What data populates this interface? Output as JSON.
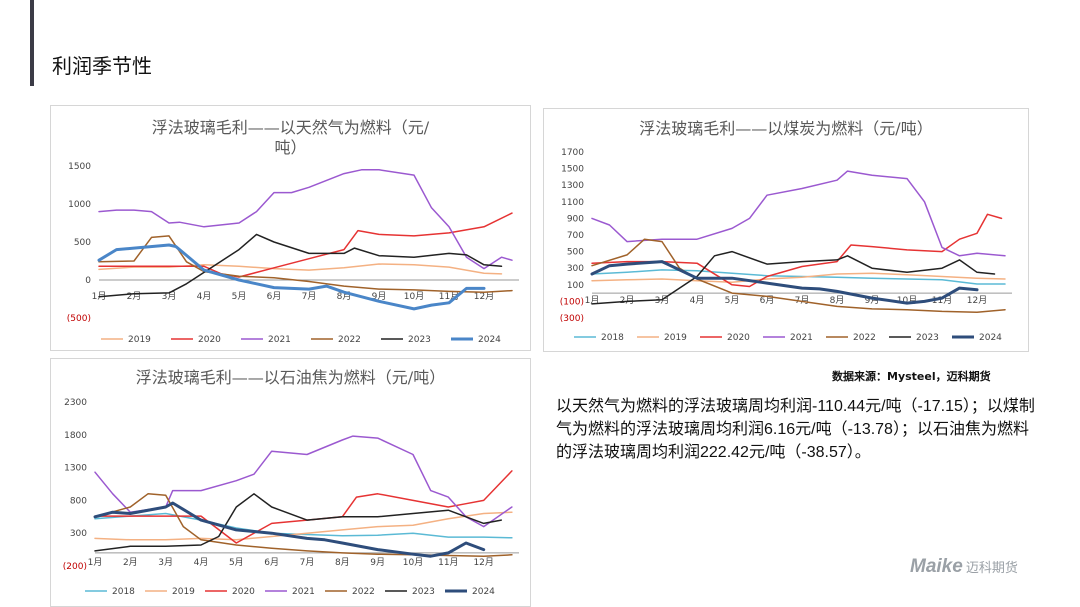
{
  "page": {
    "title": "利润季节性",
    "source": "数据来源：Mysteel，迈科期货",
    "summary": "以天然气为燃料的浮法玻璃周均利润-110.44元/吨（-17.15）；以煤制气为燃料的浮法玻璃周均利润6.16元/吨（-13.78）；以石油焦为燃料的浮法玻璃周均利润222.42元/吨（-38.57）。",
    "logo_brand": "Maike",
    "logo_cn": "迈科期货"
  },
  "chart_data": [
    {
      "type": "line",
      "title": "浮法玻璃毛利——以天然气为燃料（元/吨）",
      "title_lines": [
        "浮法玻璃毛利——以天然气为燃料（元/",
        "吨）"
      ],
      "ylim": [
        -500,
        1500
      ],
      "yticks": [
        -500,
        0,
        500,
        1000,
        1500
      ],
      "ytick_labels": [
        "(500)",
        "0",
        "500",
        "1000",
        "1500"
      ],
      "xlim": [
        1,
        13
      ],
      "x_labels": [
        "1月",
        "2月",
        "3月",
        "4月",
        "5月",
        "6月",
        "7月",
        "8月",
        "9月",
        "10月",
        "11月",
        "12月"
      ],
      "series": [
        {
          "name": "2019",
          "color": "#f4b183",
          "width": 1.5,
          "x": [
            1,
            2,
            3,
            4,
            5,
            6,
            7,
            8,
            9,
            10,
            11,
            12,
            12.5
          ],
          "values": [
            140,
            170,
            170,
            200,
            180,
            150,
            130,
            160,
            210,
            200,
            170,
            90,
            80
          ]
        },
        {
          "name": "2020",
          "color": "#e63333",
          "width": 1.5,
          "x": [
            1,
            2,
            3,
            4,
            4.5,
            5,
            6,
            7,
            8,
            8.4,
            9,
            10,
            11,
            12,
            12.8
          ],
          "values": [
            180,
            180,
            180,
            180,
            80,
            40,
            160,
            280,
            400,
            650,
            600,
            580,
            620,
            700,
            880
          ]
        },
        {
          "name": "2021",
          "color": "#9b59d0",
          "width": 1.5,
          "x": [
            1,
            1.5,
            2,
            2.5,
            3,
            3.3,
            4,
            5,
            5.5,
            6,
            6.5,
            7,
            8,
            8.5,
            9,
            10,
            10.5,
            11,
            11.5,
            12,
            12.5,
            12.8
          ],
          "values": [
            900,
            920,
            920,
            900,
            750,
            760,
            700,
            750,
            900,
            1150,
            1150,
            1220,
            1400,
            1450,
            1450,
            1380,
            950,
            700,
            300,
            150,
            300,
            260
          ]
        },
        {
          "name": "2022",
          "color": "#a0622a",
          "width": 1.5,
          "x": [
            1,
            2,
            2.5,
            3,
            3.5,
            4,
            5,
            6,
            7,
            8,
            9,
            10,
            11,
            12,
            12.8
          ],
          "values": [
            240,
            250,
            560,
            580,
            240,
            110,
            50,
            30,
            -20,
            -80,
            -120,
            -130,
            -150,
            -160,
            -140
          ]
        },
        {
          "name": "2023",
          "color": "#222222",
          "width": 1.5,
          "x": [
            1,
            2,
            3,
            3.5,
            4,
            5,
            5.5,
            6,
            7,
            8,
            8.3,
            9,
            10,
            11,
            11.5,
            12,
            12.5
          ],
          "values": [
            -220,
            -180,
            -170,
            -50,
            100,
            400,
            600,
            500,
            350,
            350,
            420,
            320,
            300,
            350,
            330,
            200,
            180
          ]
        },
        {
          "name": "2024",
          "color": "#4a86c8",
          "width": 3,
          "x": [
            1,
            1.5,
            2,
            3,
            3.2,
            4,
            5,
            6,
            7,
            7.5,
            8,
            9,
            10,
            10.5,
            11,
            11.5,
            12
          ],
          "values": [
            260,
            400,
            420,
            460,
            440,
            130,
            0,
            -100,
            -120,
            -80,
            -160,
            -280,
            -380,
            -330,
            -300,
            -110,
            -110
          ]
        }
      ]
    },
    {
      "type": "line",
      "title": "浮法玻璃毛利——以煤炭为燃料（元/吨）",
      "title_lines": [
        "浮法玻璃毛利——以煤炭为燃料（元/吨）"
      ],
      "ylim": [
        -300,
        1700
      ],
      "yticks": [
        -300,
        -100,
        100,
        300,
        500,
        700,
        900,
        1100,
        1300,
        1500,
        1700
      ],
      "ytick_labels": [
        "(300)",
        "(100)",
        "100",
        "300",
        "500",
        "700",
        "900",
        "1100",
        "1300",
        "1500",
        "1700"
      ],
      "xlim": [
        1,
        13
      ],
      "x_labels": [
        "1月",
        "2月",
        "3月",
        "4月",
        "5月",
        "6月",
        "7月",
        "8月",
        "9月",
        "10月",
        "11月",
        "12月"
      ],
      "series": [
        {
          "name": "2018",
          "color": "#5bbad5",
          "width": 1.5,
          "x": [
            1,
            2,
            3,
            4,
            5,
            6,
            7,
            8,
            9,
            10,
            11,
            12,
            12.8
          ],
          "values": [
            230,
            250,
            280,
            270,
            240,
            210,
            200,
            190,
            180,
            170,
            160,
            110,
            110
          ]
        },
        {
          "name": "2019",
          "color": "#f4b183",
          "width": 1.5,
          "x": [
            1,
            2,
            3,
            4,
            5,
            6,
            7,
            8,
            9,
            10,
            11,
            12,
            12.8
          ],
          "values": [
            150,
            160,
            170,
            150,
            130,
            170,
            190,
            230,
            240,
            220,
            200,
            180,
            170
          ]
        },
        {
          "name": "2020",
          "color": "#e63333",
          "width": 1.5,
          "x": [
            1,
            2,
            3,
            4,
            5,
            5.5,
            6,
            7,
            8,
            8.4,
            9,
            10,
            11,
            11.5,
            12,
            12.3,
            12.7
          ],
          "values": [
            360,
            380,
            380,
            360,
            100,
            80,
            200,
            320,
            380,
            580,
            560,
            520,
            500,
            650,
            720,
            950,
            900
          ]
        },
        {
          "name": "2021",
          "color": "#9b59d0",
          "width": 1.5,
          "x": [
            1,
            1.5,
            2,
            3,
            4,
            5,
            5.5,
            6,
            7,
            8,
            8.3,
            9,
            10,
            10.5,
            11,
            11.5,
            12,
            12.8
          ],
          "values": [
            900,
            820,
            620,
            650,
            650,
            780,
            900,
            1180,
            1260,
            1360,
            1470,
            1420,
            1380,
            1100,
            550,
            450,
            480,
            450
          ]
        },
        {
          "name": "2022",
          "color": "#a0622a",
          "width": 1.5,
          "x": [
            1,
            2,
            2.5,
            3,
            3.5,
            4,
            5,
            6,
            7,
            8,
            9,
            10,
            11,
            12,
            12.8
          ],
          "values": [
            330,
            460,
            650,
            620,
            300,
            170,
            0,
            -40,
            -100,
            -160,
            -190,
            -200,
            -220,
            -230,
            -200
          ]
        },
        {
          "name": "2023",
          "color": "#222222",
          "width": 1.5,
          "x": [
            1,
            2,
            3,
            4,
            4.5,
            5,
            6,
            7,
            8,
            8.3,
            9,
            10,
            11,
            11.5,
            12,
            12.5
          ],
          "values": [
            -130,
            -100,
            -80,
            200,
            450,
            500,
            350,
            380,
            400,
            450,
            300,
            250,
            300,
            400,
            250,
            230
          ]
        },
        {
          "name": "2024",
          "color": "#2e4d7b",
          "width": 3,
          "x": [
            1,
            1.5,
            2,
            3,
            3.2,
            4,
            5,
            6,
            7,
            7.5,
            8,
            9,
            10,
            10.5,
            11,
            11.5,
            12
          ],
          "values": [
            230,
            330,
            350,
            380,
            340,
            180,
            180,
            120,
            60,
            50,
            20,
            -60,
            -120,
            -100,
            -60,
            60,
            40
          ]
        }
      ]
    },
    {
      "type": "line",
      "title": "浮法玻璃毛利——以石油焦为燃料（元/吨）",
      "title_lines": [
        "浮法玻璃毛利——以石油焦为燃料（元/吨）"
      ],
      "ylim": [
        -200,
        2300
      ],
      "yticks": [
        -200,
        300,
        800,
        1300,
        1800,
        2300
      ],
      "ytick_labels": [
        "(200)",
        "300",
        "800",
        "1300",
        "1800",
        "2300"
      ],
      "xlim": [
        1,
        13
      ],
      "x_labels": [
        "1月",
        "2月",
        "3月",
        "4月",
        "5月",
        "6月",
        "7月",
        "8月",
        "9月",
        "10月",
        "11月",
        "12月"
      ],
      "series": [
        {
          "name": "2018",
          "color": "#5bbad5",
          "width": 1.5,
          "x": [
            1,
            2,
            3,
            4,
            5,
            6,
            7,
            8,
            9,
            10,
            11,
            12,
            12.8
          ],
          "values": [
            520,
            560,
            600,
            500,
            380,
            300,
            280,
            260,
            270,
            300,
            240,
            240,
            230
          ]
        },
        {
          "name": "2019",
          "color": "#f4b183",
          "width": 1.5,
          "x": [
            1,
            2,
            3,
            4,
            5,
            6,
            7,
            8,
            9,
            10,
            11,
            12,
            12.8
          ],
          "values": [
            220,
            200,
            200,
            220,
            200,
            250,
            300,
            350,
            400,
            420,
            520,
            600,
            620
          ]
        },
        {
          "name": "2020",
          "color": "#e63333",
          "width": 1.5,
          "x": [
            1,
            2,
            3,
            4,
            5,
            6,
            7,
            8,
            8.4,
            9,
            10,
            11,
            11.5,
            12,
            12.8
          ],
          "values": [
            560,
            560,
            560,
            560,
            150,
            450,
            500,
            550,
            850,
            900,
            800,
            700,
            750,
            800,
            1250
          ]
        },
        {
          "name": "2021",
          "color": "#9b59d0",
          "width": 1.5,
          "x": [
            1,
            1.5,
            2,
            3,
            3.2,
            4,
            5,
            5.5,
            6,
            7,
            8,
            8.3,
            9,
            10,
            10.5,
            11,
            11.5,
            12,
            12.8
          ],
          "values": [
            1230,
            900,
            620,
            700,
            950,
            950,
            1100,
            1200,
            1550,
            1500,
            1720,
            1780,
            1750,
            1500,
            950,
            850,
            550,
            400,
            700
          ]
        },
        {
          "name": "2022",
          "color": "#a0622a",
          "width": 1.5,
          "x": [
            1,
            2,
            2.5,
            3,
            3.5,
            4,
            5,
            6,
            7,
            8,
            9,
            10,
            11,
            12,
            12.8
          ],
          "values": [
            550,
            700,
            900,
            880,
            400,
            200,
            120,
            70,
            30,
            0,
            -20,
            -30,
            -40,
            -50,
            -30
          ]
        },
        {
          "name": "2023",
          "color": "#222222",
          "width": 1.5,
          "x": [
            1,
            2,
            3,
            4,
            4.5,
            5,
            5.5,
            6,
            7,
            8,
            9,
            10,
            11,
            11.5,
            12,
            12.5
          ],
          "values": [
            30,
            100,
            100,
            120,
            250,
            700,
            900,
            700,
            500,
            550,
            550,
            600,
            650,
            550,
            450,
            500
          ]
        },
        {
          "name": "2024",
          "color": "#2e4d7b",
          "width": 3,
          "x": [
            1,
            1.5,
            2,
            3,
            3.2,
            4,
            5,
            6,
            7,
            7.5,
            8,
            9,
            10,
            10.5,
            11,
            11.5,
            12
          ],
          "values": [
            550,
            620,
            600,
            700,
            760,
            500,
            350,
            300,
            220,
            200,
            150,
            50,
            -20,
            -50,
            0,
            150,
            50
          ]
        }
      ]
    }
  ]
}
